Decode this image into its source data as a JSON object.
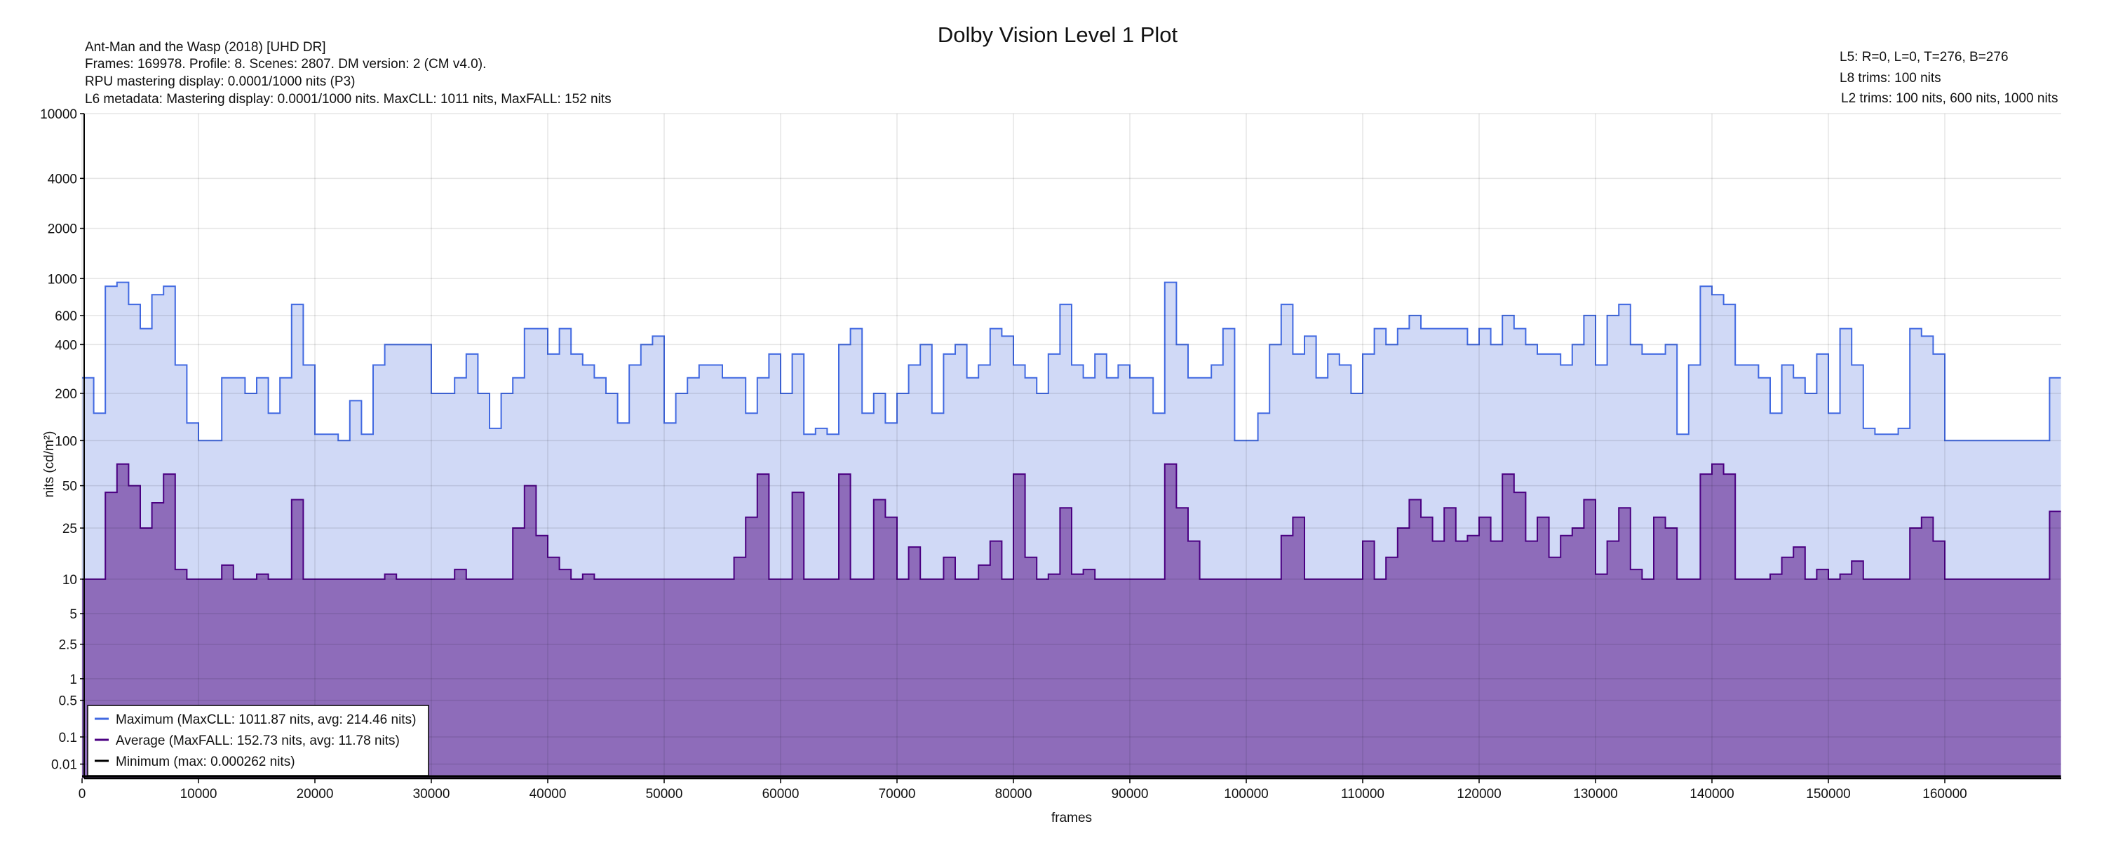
{
  "chart_data": {
    "type": "line",
    "title": "Dolby Vision Level 1 Plot",
    "header_left": [
      "Ant-Man and the Wasp (2018) [UHD DR]",
      "Frames: 169978. Profile: 8. Scenes: 2807. DM version: 2 (CM v4.0).",
      "RPU mastering display: 0.0001/1000 nits  (P3)",
      "L6 metadata: Mastering display: 0.0001/1000 nits. MaxCLL: 1011 nits, MaxFALL: 152 nits"
    ],
    "header_right": [
      "L5: R=0, L=0, T=276, B=276",
      "L8 trims: 100 nits",
      "L2 trims: 100 nits, 600 nits, 1000 nits"
    ],
    "xlabel": "frames",
    "ylabel": "nits (cd/m²)",
    "y_scale": "pq",
    "xlim": [
      0,
      169978
    ],
    "ylim": [
      0,
      10000
    ],
    "x_ticks": [
      0,
      10000,
      20000,
      30000,
      40000,
      50000,
      60000,
      70000,
      80000,
      90000,
      100000,
      110000,
      120000,
      130000,
      140000,
      150000,
      160000
    ],
    "x_tick_labels": [
      "0",
      "10000",
      "20000",
      "30000",
      "40000",
      "50000",
      "60000",
      "70000",
      "80000",
      "90000",
      "100000",
      "110000",
      "120000",
      "130000",
      "140000",
      "150000",
      "160000"
    ],
    "y_ticks": [
      0.01,
      0.1,
      0.5,
      1,
      2.5,
      5,
      10,
      25,
      50,
      100,
      200,
      400,
      600,
      1000,
      2000,
      4000,
      10000
    ],
    "y_tick_labels": [
      "0.01",
      "0.1",
      "0.5",
      "1",
      "2.5",
      "5",
      "10",
      "25",
      "50",
      "100",
      "200",
      "400",
      "600",
      "1000",
      "2000",
      "4000",
      "10000"
    ],
    "grid": true,
    "legend_position": "bottom-left",
    "bin_size_frames": 1000,
    "series": [
      {
        "name": "Maximum",
        "legend": "Maximum (MaxCLL: 1011.87 nits, avg: 214.46 nits)",
        "color": "#4169e1",
        "fill": "#d0d9f6",
        "values": [
          250,
          150,
          900,
          950,
          700,
          500,
          800,
          900,
          300,
          130,
          100,
          100,
          250,
          250,
          200,
          250,
          150,
          250,
          700,
          300,
          110,
          110,
          100,
          180,
          110,
          300,
          400,
          400,
          400,
          400,
          200,
          200,
          250,
          350,
          200,
          120,
          200,
          250,
          500,
          500,
          350,
          500,
          350,
          300,
          250,
          200,
          130,
          300,
          400,
          450,
          130,
          200,
          250,
          300,
          300,
          250,
          250,
          150,
          250,
          350,
          200,
          350,
          110,
          120,
          110,
          400,
          500,
          150,
          200,
          130,
          200,
          300,
          400,
          150,
          350,
          400,
          250,
          300,
          500,
          450,
          300,
          250,
          200,
          350,
          700,
          300,
          250,
          350,
          250,
          300,
          250,
          250,
          150,
          950,
          400,
          250,
          250,
          300,
          500,
          100,
          100,
          150,
          400,
          700,
          350,
          450,
          250,
          350,
          300,
          200,
          350,
          500,
          400,
          500,
          600,
          500,
          500,
          500,
          500,
          400,
          500,
          400,
          600,
          500,
          400,
          350,
          350,
          300,
          400,
          600,
          300,
          600,
          700,
          400,
          350,
          350,
          400,
          110,
          300,
          900,
          800,
          700,
          300,
          300,
          250,
          150,
          300,
          250,
          200,
          350,
          150,
          500,
          300,
          120,
          110,
          110,
          120,
          500,
          450,
          350,
          100,
          100,
          100,
          100,
          100,
          100,
          100,
          100,
          100,
          250
        ]
      },
      {
        "name": "Average",
        "legend": "Average (MaxFALL: 152.73 nits, avg: 11.78 nits)",
        "color": "#4b0082",
        "fill": "#8e6cba",
        "values": [
          10,
          10,
          45,
          70,
          50,
          25,
          38,
          60,
          12,
          10,
          10,
          10,
          13,
          10,
          10,
          11,
          10,
          10,
          40,
          10,
          10,
          10,
          10,
          10,
          10,
          10,
          11,
          10,
          10,
          10,
          10,
          10,
          12,
          10,
          10,
          10,
          10,
          25,
          50,
          22,
          15,
          12,
          10,
          11,
          10,
          10,
          10,
          10,
          10,
          10,
          10,
          10,
          10,
          10,
          10,
          10,
          15,
          30,
          60,
          10,
          10,
          45,
          10,
          10,
          10,
          60,
          10,
          10,
          40,
          30,
          10,
          18,
          10,
          10,
          15,
          10,
          10,
          13,
          20,
          10,
          60,
          15,
          10,
          11,
          35,
          11,
          12,
          10,
          10,
          10,
          10,
          10,
          10,
          70,
          35,
          20,
          10,
          10,
          10,
          10,
          10,
          10,
          10,
          22,
          30,
          10,
          10,
          10,
          10,
          10,
          20,
          10,
          15,
          25,
          40,
          30,
          20,
          35,
          20,
          22,
          30,
          20,
          60,
          45,
          20,
          30,
          15,
          22,
          25,
          40,
          11,
          20,
          35,
          12,
          10,
          30,
          25,
          10,
          10,
          60,
          70,
          60,
          10,
          10,
          10,
          11,
          15,
          18,
          10,
          12,
          10,
          11,
          14,
          10,
          10,
          10,
          10,
          25,
          30,
          20,
          10,
          10,
          10,
          10,
          10,
          10,
          10,
          10,
          10,
          33
        ]
      },
      {
        "name": "Minimum",
        "legend": "Minimum (max: 0.000262 nits)",
        "color": "#000000",
        "max_value": 0.000262
      }
    ]
  }
}
